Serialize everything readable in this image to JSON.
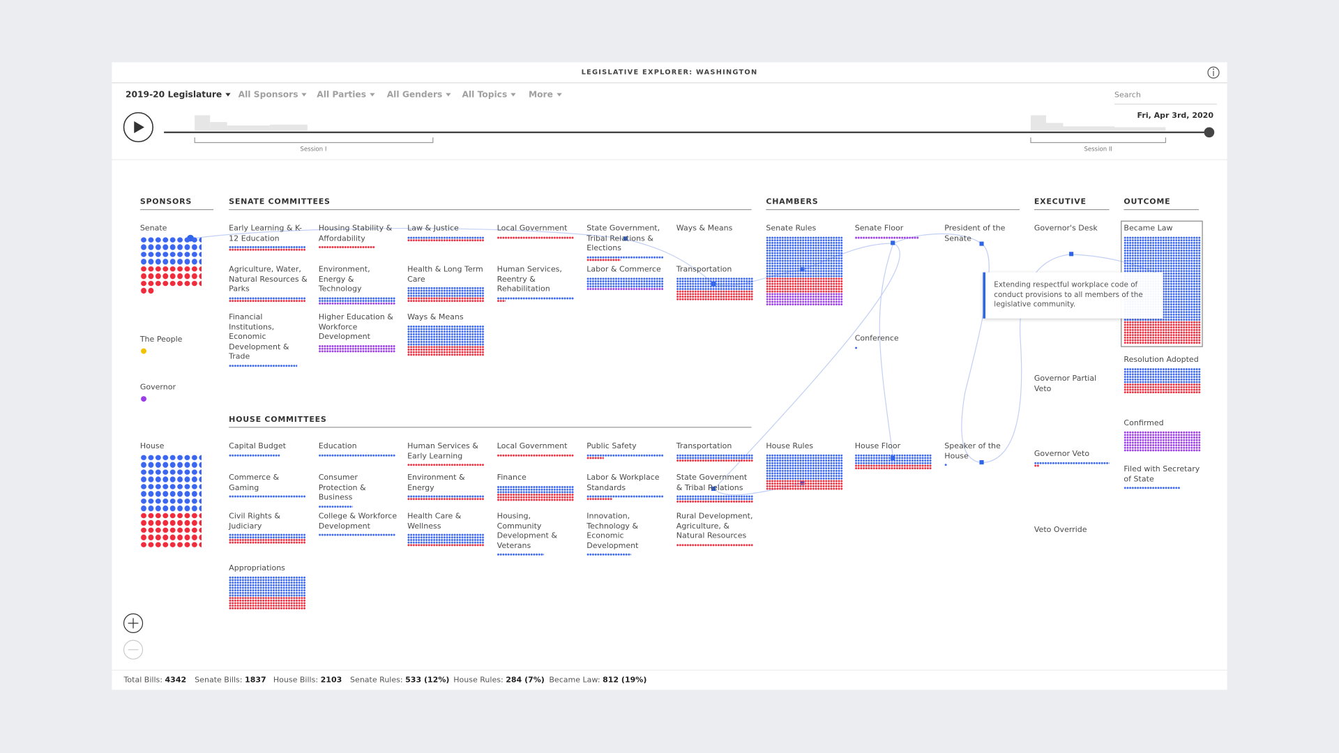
{
  "header": {
    "title": "LEGISLATIVE EXPLORER: WASHINGTON"
  },
  "filters": [
    "2019-20 Legislature",
    "All Sponsors",
    "All Parties",
    "All Genders",
    "All Topics",
    "More"
  ],
  "search": "Search",
  "timeline": {
    "date": "Fri, Apr 3rd, 2020",
    "sessions": [
      "Session I",
      "Session II"
    ]
  },
  "sections": {
    "sponsors": {
      "title": "SPONSORS",
      "items": [
        "Senate",
        "The People",
        "Governor",
        "House"
      ]
    },
    "senate_committees": {
      "title": "SENATE COMMITTEES",
      "items": [
        "Early Learning & K-12 Education",
        "Housing Stability & Affordability",
        "Law & Justice",
        "Local Government",
        "State Government, Tribal Relations & Elections",
        "Ways & Means",
        "Agriculture, Water, Natural Resources & Parks",
        "Environment, Energy & Technology",
        "Health & Long Term Care",
        "Human Services, Reentry & Rehabilitation",
        "Labor & Commerce",
        "Transportation",
        "Financial Institutions, Economic Development & Trade",
        "Higher Education & Workforce Development",
        "Ways & Means"
      ]
    },
    "house_committees": {
      "title": "HOUSE COMMITTEES",
      "items": [
        "Capital Budget",
        "Education",
        "Human Services & Early Learning",
        "Local Government",
        "Public Safety",
        "Transportation",
        "Commerce & Gaming",
        "Consumer Protection & Business",
        "Environment & Energy",
        "Finance",
        "Labor & Workplace Standards",
        "State Government & Tribal Relations",
        "Civil Rights & Judiciary",
        "College & Workforce Development",
        "Health Care & Wellness",
        "Housing, Community Development & Veterans",
        "Innovation, Technology & Economic Development",
        "Rural Development, Agriculture, & Natural Resources",
        "Appropriations"
      ]
    },
    "chambers": {
      "title": "CHAMBERS",
      "items": [
        "Senate Rules",
        "Senate Floor",
        "President of the Senate",
        "Conference",
        "House Rules",
        "House Floor",
        "Speaker of the House"
      ]
    },
    "executive": {
      "title": "EXECUTIVE",
      "items": [
        "Governor's Desk",
        "Governor Partial Veto",
        "Governor Veto",
        "Veto Override"
      ]
    },
    "outcome": {
      "title": "OUTCOME",
      "items": [
        "Became Law",
        "Resolution Adopted",
        "Confirmed",
        "Filed with Secretary of State"
      ]
    }
  },
  "tooltip": "Extending respectful workplace code of conduct provisions to all members of the legislative community.",
  "stats": [
    {
      "label": "Total Bills:",
      "value": "4342"
    },
    {
      "label": "Senate Bills:",
      "value": "1837"
    },
    {
      "label": "House Bills:",
      "value": "2103"
    },
    {
      "label": "Senate Rules:",
      "value": "533 (12%)"
    },
    {
      "label": "House Rules:",
      "value": "284 (7%)"
    },
    {
      "label": "Became Law:",
      "value": "812 (19%)"
    }
  ]
}
